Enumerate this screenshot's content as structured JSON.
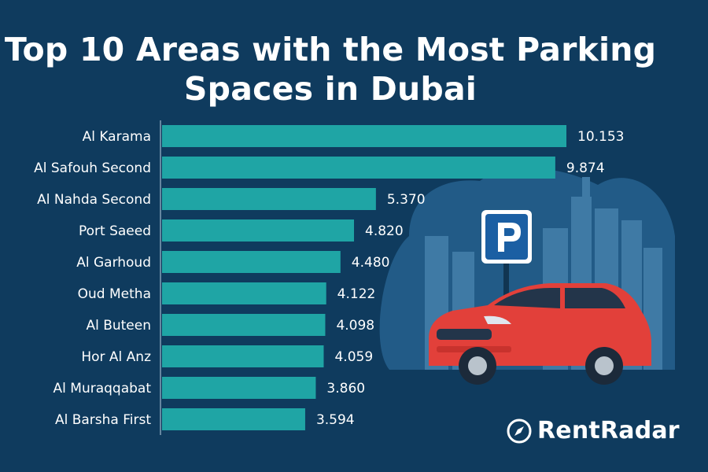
{
  "chart_data": {
    "type": "bar",
    "orientation": "horizontal",
    "title_lines": [
      "Top 10 Areas with the Most Parking",
      "Spaces in Dubai"
    ],
    "categories": [
      "Al Karama",
      "Al Safouh Second",
      "Al Nahda Second",
      "Port Saeed",
      "Al Garhoud",
      "Oud Metha",
      "Al Buteen",
      "Hor Al Anz",
      "Al Muraqqabat",
      "Al Barsha First"
    ],
    "values": [
      10153,
      9874,
      5370,
      4820,
      4480,
      4122,
      4098,
      4059,
      3860,
      3594
    ],
    "value_labels": [
      "10.153",
      "9.874",
      "5.370",
      "4.820",
      "4.480",
      "4.122",
      "4.098",
      "4.059",
      "3.860",
      "3.594"
    ],
    "xlim": [
      0,
      10153
    ],
    "grid": false,
    "bar_color": "#1fa5a5"
  },
  "brand": {
    "name": "RentRadar",
    "icon": "compass-icon"
  },
  "illustration": {
    "icons": [
      "parking-sign-icon",
      "car-icon",
      "city-skyline-icon"
    ]
  },
  "colors": {
    "background": "#0f3b5e",
    "car": "#e2403a",
    "parking_sign": "#1b5fa3",
    "skyline": "#3f7aa5",
    "blob": "#225b87"
  }
}
